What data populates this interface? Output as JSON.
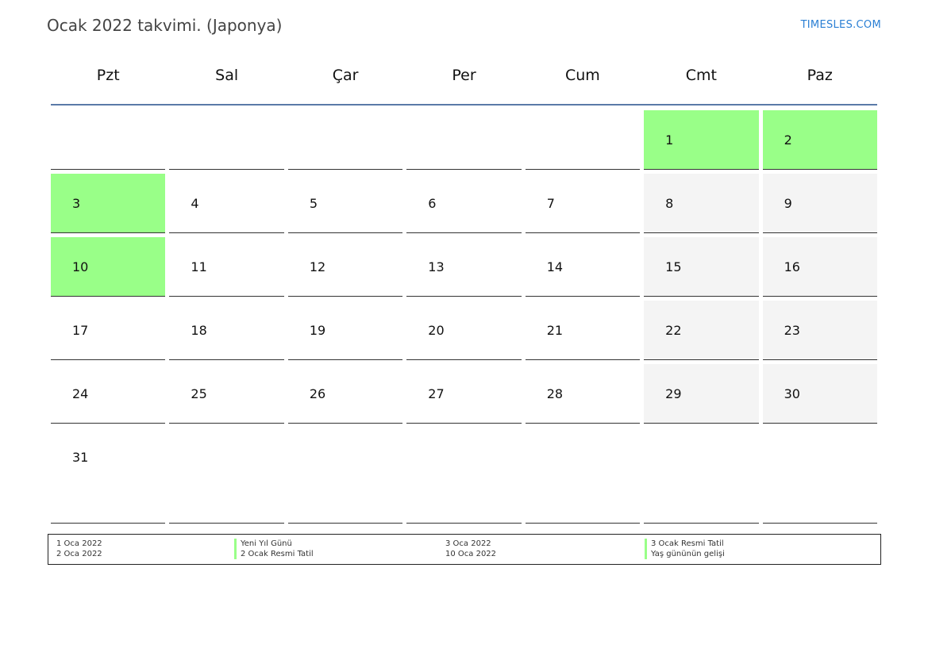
{
  "title": "Ocak 2022 takvimi. (Japonya)",
  "brand": "TIMESLES.COM",
  "weekdays": [
    "Pzt",
    "Sal",
    "Çar",
    "Per",
    "Cum",
    "Cmt",
    "Paz"
  ],
  "colors": {
    "holiday": "#99ff88",
    "weekend": "#f4f4f4",
    "header_line": "#5a7aa8"
  },
  "weeks": [
    [
      null,
      null,
      null,
      null,
      null,
      1,
      2
    ],
    [
      3,
      4,
      5,
      6,
      7,
      8,
      9
    ],
    [
      10,
      11,
      12,
      13,
      14,
      15,
      16
    ],
    [
      17,
      18,
      19,
      20,
      21,
      22,
      23
    ],
    [
      24,
      25,
      26,
      27,
      28,
      29,
      30
    ],
    [
      31,
      null,
      null,
      null,
      null,
      null,
      null
    ]
  ],
  "holiday_days": [
    1,
    2,
    3,
    10
  ],
  "legend": {
    "col1_dates": [
      "1 Oca 2022",
      "2 Oca 2022"
    ],
    "col1_names": [
      "Yeni Yıl Günü",
      "2 Ocak Resmi Tatil"
    ],
    "col2_dates": [
      "3 Oca 2022",
      "10 Oca 2022"
    ],
    "col2_names": [
      "3 Ocak Resmi Tatil",
      "Yaş gününün gelişi"
    ]
  }
}
